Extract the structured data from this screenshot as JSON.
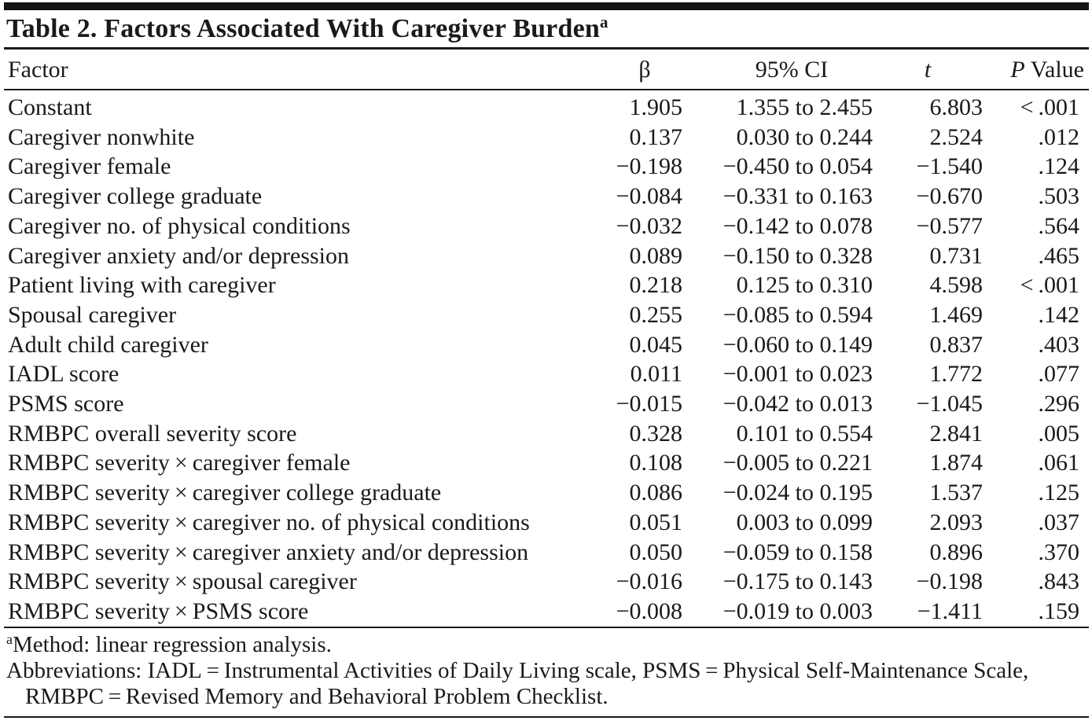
{
  "table": {
    "title": "Table 2. Factors Associated With Caregiver Burden",
    "title_superscript": "a",
    "header": {
      "factor": "Factor",
      "beta": "β",
      "ci": "95% CI",
      "t": "t",
      "p_italic": "P",
      "p_rest": " Value"
    },
    "rows": [
      {
        "factor": "Constant",
        "beta": "1.905",
        "ci": "1.355 to 2.455",
        "t": "6.803",
        "p": "< .001"
      },
      {
        "factor": "Caregiver nonwhite",
        "beta": "0.137",
        "ci": "0.030 to 0.244",
        "t": "2.524",
        "p": ".012"
      },
      {
        "factor": "Caregiver female",
        "beta": "−0.198",
        "ci": "−0.450 to 0.054",
        "t": "−1.540",
        "p": ".124"
      },
      {
        "factor": "Caregiver college graduate",
        "beta": "−0.084",
        "ci": "−0.331 to 0.163",
        "t": "−0.670",
        "p": ".503"
      },
      {
        "factor": "Caregiver no. of physical conditions",
        "beta": "−0.032",
        "ci": "−0.142 to 0.078",
        "t": "−0.577",
        "p": ".564"
      },
      {
        "factor": "Caregiver anxiety and/or depression",
        "beta": "0.089",
        "ci": "−0.150 to 0.328",
        "t": "0.731",
        "p": ".465"
      },
      {
        "factor": "Patient living with caregiver",
        "beta": "0.218",
        "ci": "0.125 to 0.310",
        "t": "4.598",
        "p": "< .001"
      },
      {
        "factor": "Spousal caregiver",
        "beta": "0.255",
        "ci": "−0.085 to 0.594",
        "t": "1.469",
        "p": ".142"
      },
      {
        "factor": "Adult child caregiver",
        "beta": "0.045",
        "ci": "−0.060 to 0.149",
        "t": "0.837",
        "p": ".403"
      },
      {
        "factor": "IADL score",
        "beta": "0.011",
        "ci": "−0.001 to 0.023",
        "t": "1.772",
        "p": ".077"
      },
      {
        "factor": "PSMS score",
        "beta": "−0.015",
        "ci": "−0.042 to 0.013",
        "t": "−1.045",
        "p": ".296"
      },
      {
        "factor": "RMBPC overall severity score",
        "beta": "0.328",
        "ci": "0.101 to 0.554",
        "t": "2.841",
        "p": ".005"
      },
      {
        "factor": "RMBPC severity × caregiver female",
        "beta": "0.108",
        "ci": "−0.005 to 0.221",
        "t": "1.874",
        "p": ".061"
      },
      {
        "factor": "RMBPC severity × caregiver college graduate",
        "beta": "0.086",
        "ci": "−0.024 to 0.195",
        "t": "1.537",
        "p": ".125"
      },
      {
        "factor": "RMBPC severity × caregiver no. of physical conditions",
        "beta": "0.051",
        "ci": "0.003 to 0.099",
        "t": "2.093",
        "p": ".037"
      },
      {
        "factor": "RMBPC severity × caregiver anxiety and/or depression",
        "beta": "0.050",
        "ci": "−0.059 to 0.158",
        "t": "0.896",
        "p": ".370"
      },
      {
        "factor": "RMBPC severity × spousal caregiver",
        "beta": "−0.016",
        "ci": "−0.175 to 0.143",
        "t": "−0.198",
        "p": ".843"
      },
      {
        "factor": "RMBPC severity × PSMS score",
        "beta": "−0.008",
        "ci": "−0.019 to 0.003",
        "t": "−1.411",
        "p": ".159"
      }
    ],
    "footnotes": {
      "method_superscript": "a",
      "method": "Method: linear regression analysis.",
      "abbreviations": "Abbreviations: IADL = Instrumental Activities of Daily Living scale, PSMS = Physical Self-Maintenance Scale, RMBPC = Revised Memory and Behavioral Problem Checklist."
    }
  }
}
